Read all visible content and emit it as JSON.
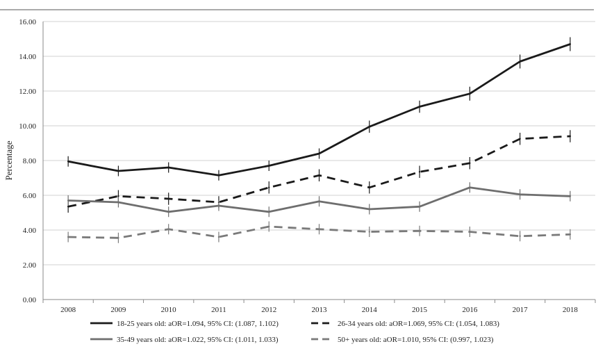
{
  "chart_data": {
    "type": "line",
    "title": "",
    "xlabel": "",
    "ylabel": "Percentage",
    "x": [
      2008,
      2009,
      2010,
      2011,
      2012,
      2013,
      2014,
      2015,
      2016,
      2017,
      2018
    ],
    "x_tick_labels": [
      "2008",
      "2009",
      "2010",
      "2011",
      "2012",
      "2013",
      "2014",
      "2015",
      "2016",
      "2017",
      "2018"
    ],
    "ylim": [
      0,
      16
    ],
    "y_ticks": [
      0,
      2,
      4,
      6,
      8,
      10,
      12,
      14,
      16
    ],
    "y_tick_labels": [
      "0.00",
      "2.00",
      "4.00",
      "6.00",
      "8.00",
      "10.00",
      "12.00",
      "14.00",
      "16.00"
    ],
    "grid": "horizontal",
    "legend_position": "bottom",
    "error_bars": true,
    "series": [
      {
        "name": "18-25 years old: aOR=1.094, 95% CI: (1.087, 1.102)",
        "color": "#1a1a1a",
        "dash": "solid",
        "values": [
          7.95,
          7.4,
          7.6,
          7.15,
          7.7,
          8.4,
          9.95,
          11.1,
          11.85,
          13.7,
          14.7
        ],
        "error": [
          0.3,
          0.3,
          0.3,
          0.3,
          0.3,
          0.3,
          0.35,
          0.35,
          0.4,
          0.4,
          0.4
        ]
      },
      {
        "name": "26-34 years old: aOR=1.069, 95% CI: (1.054, 1.083)",
        "color": "#1a1a1a",
        "dash": "dashed",
        "values": [
          5.35,
          5.95,
          5.8,
          5.6,
          6.45,
          7.15,
          6.45,
          7.35,
          7.85,
          9.25,
          9.4
        ],
        "error": [
          0.35,
          0.35,
          0.35,
          0.35,
          0.35,
          0.35,
          0.35,
          0.35,
          0.35,
          0.35,
          0.35
        ]
      },
      {
        "name": "35-49 years old: aOR=1.022, 95% CI: (1.011, 1.033)",
        "color": "#6e6e6e",
        "dash": "solid",
        "values": [
          5.7,
          5.6,
          5.05,
          5.4,
          5.05,
          5.65,
          5.2,
          5.35,
          6.45,
          6.05,
          5.95
        ],
        "error": [
          0.3,
          0.3,
          0.3,
          0.3,
          0.3,
          0.3,
          0.3,
          0.3,
          0.3,
          0.3,
          0.3
        ]
      },
      {
        "name": "50+ years old: aOR=1.010, 95% CI: (0.997, 1.023)",
        "color": "#7a7a7a",
        "dash": "dashed",
        "values": [
          3.6,
          3.55,
          4.05,
          3.6,
          4.2,
          4.05,
          3.9,
          3.95,
          3.9,
          3.65,
          3.75
        ],
        "error": [
          0.3,
          0.3,
          0.3,
          0.3,
          0.3,
          0.3,
          0.3,
          0.3,
          0.3,
          0.3,
          0.3
        ]
      }
    ]
  }
}
